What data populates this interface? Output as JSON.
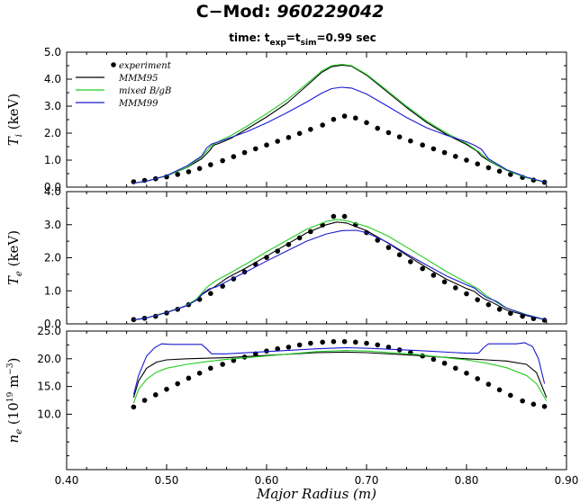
{
  "header": {
    "title_prefix": "C−Mod: ",
    "title_shot": "960229042",
    "subtitle_prefix": "time: t",
    "subtitle_sub1": "exp",
    "subtitle_mid": "=t",
    "subtitle_sub2": "sim",
    "subtitle_suffix": "=0.99 sec"
  },
  "colors": {
    "experiment": "#000000",
    "MMM95": "#000000",
    "mixed_BgB": "#22cc22",
    "MMM99": "#1a1acc"
  },
  "legend": {
    "placement": "top-left",
    "entries": [
      "experiment",
      "MMM95",
      "mixed B/gB",
      "MMM99"
    ]
  },
  "chart_data": [
    {
      "type": "line",
      "panel": "Ti",
      "ylabel_main": "T",
      "ylabel_sub": "i",
      "ylabel_unit": " (keV)",
      "xlim": [
        0.4,
        0.9
      ],
      "ylim": [
        0.0,
        5.0
      ],
      "yticks": [
        "0.0",
        "1.0",
        "2.0",
        "3.0",
        "4.0",
        "5.0"
      ],
      "grid": false,
      "series": [
        {
          "name": "experiment",
          "style": "points",
          "x": [
            0.467,
            0.478,
            0.489,
            0.5,
            0.511,
            0.522,
            0.533,
            0.544,
            0.556,
            0.567,
            0.578,
            0.589,
            0.6,
            0.611,
            0.622,
            0.633,
            0.644,
            0.656,
            0.667,
            0.678,
            0.689,
            0.7,
            0.711,
            0.722,
            0.733,
            0.744,
            0.756,
            0.767,
            0.778,
            0.789,
            0.8,
            0.811,
            0.822,
            0.833,
            0.844,
            0.856,
            0.867,
            0.878
          ],
          "y": [
            0.2,
            0.25,
            0.31,
            0.38,
            0.47,
            0.57,
            0.69,
            0.83,
            0.98,
            1.13,
            1.28,
            1.42,
            1.56,
            1.7,
            1.84,
            1.99,
            2.14,
            2.3,
            2.51,
            2.63,
            2.56,
            2.39,
            2.18,
            2.02,
            1.86,
            1.71,
            1.56,
            1.42,
            1.28,
            1.14,
            1.0,
            0.86,
            0.72,
            0.59,
            0.47,
            0.36,
            0.26,
            0.18
          ]
        },
        {
          "name": "MMM95",
          "style": "line",
          "x": [
            0.467,
            0.48,
            0.5,
            0.52,
            0.535,
            0.543,
            0.547,
            0.555,
            0.565,
            0.58,
            0.6,
            0.62,
            0.64,
            0.655,
            0.665,
            0.675,
            0.685,
            0.7,
            0.72,
            0.74,
            0.76,
            0.78,
            0.8,
            0.81,
            0.815,
            0.822,
            0.84,
            0.86,
            0.88
          ],
          "y": [
            0.15,
            0.22,
            0.42,
            0.72,
            1.05,
            1.35,
            1.55,
            1.66,
            1.82,
            2.15,
            2.6,
            3.1,
            3.75,
            4.25,
            4.46,
            4.52,
            4.48,
            4.15,
            3.55,
            2.95,
            2.4,
            1.95,
            1.58,
            1.35,
            1.15,
            0.98,
            0.62,
            0.35,
            0.17
          ]
        },
        {
          "name": "mixed B/gB",
          "style": "line",
          "x": [
            0.467,
            0.48,
            0.5,
            0.52,
            0.535,
            0.545,
            0.555,
            0.565,
            0.58,
            0.6,
            0.62,
            0.64,
            0.655,
            0.665,
            0.675,
            0.685,
            0.7,
            0.72,
            0.74,
            0.76,
            0.78,
            0.8,
            0.812,
            0.822,
            0.84,
            0.86,
            0.88
          ],
          "y": [
            0.15,
            0.22,
            0.42,
            0.73,
            1.12,
            1.55,
            1.75,
            1.92,
            2.25,
            2.72,
            3.22,
            3.82,
            4.3,
            4.5,
            4.55,
            4.5,
            4.18,
            3.6,
            3.0,
            2.45,
            2.0,
            1.62,
            1.32,
            1.0,
            0.62,
            0.35,
            0.17
          ]
        },
        {
          "name": "MMM99",
          "style": "line",
          "x": [
            0.467,
            0.48,
            0.5,
            0.52,
            0.535,
            0.54,
            0.545,
            0.552,
            0.56,
            0.58,
            0.6,
            0.62,
            0.64,
            0.655,
            0.665,
            0.675,
            0.685,
            0.7,
            0.72,
            0.74,
            0.76,
            0.78,
            0.8,
            0.808,
            0.815,
            0.822,
            0.84,
            0.86,
            0.88
          ],
          "y": [
            0.15,
            0.22,
            0.43,
            0.78,
            1.15,
            1.45,
            1.6,
            1.68,
            1.78,
            2.05,
            2.38,
            2.75,
            3.15,
            3.48,
            3.65,
            3.7,
            3.67,
            3.45,
            3.02,
            2.58,
            2.2,
            1.92,
            1.68,
            1.55,
            1.4,
            1.05,
            0.65,
            0.37,
            0.17
          ]
        }
      ]
    },
    {
      "type": "line",
      "panel": "Te",
      "ylabel_main": "T",
      "ylabel_sub": "e",
      "ylabel_unit": " (keV)",
      "xlim": [
        0.4,
        0.9
      ],
      "ylim": [
        0.0,
        4.0
      ],
      "yticks": [
        "0.0",
        "1.0",
        "2.0",
        "3.0",
        "4.0"
      ],
      "grid": false,
      "series": [
        {
          "name": "experiment",
          "style": "points",
          "x": [
            0.467,
            0.478,
            0.489,
            0.5,
            0.511,
            0.522,
            0.533,
            0.544,
            0.556,
            0.567,
            0.578,
            0.589,
            0.6,
            0.611,
            0.622,
            0.633,
            0.644,
            0.656,
            0.667,
            0.678,
            0.689,
            0.7,
            0.711,
            0.722,
            0.733,
            0.744,
            0.756,
            0.767,
            0.778,
            0.789,
            0.8,
            0.811,
            0.822,
            0.833,
            0.844,
            0.856,
            0.867,
            0.878
          ],
          "y": [
            0.13,
            0.17,
            0.23,
            0.33,
            0.44,
            0.58,
            0.74,
            0.92,
            1.14,
            1.36,
            1.57,
            1.8,
            2.01,
            2.2,
            2.4,
            2.6,
            2.79,
            2.99,
            3.25,
            3.25,
            3.0,
            2.76,
            2.53,
            2.31,
            2.09,
            1.88,
            1.67,
            1.47,
            1.27,
            1.09,
            0.91,
            0.73,
            0.58,
            0.44,
            0.32,
            0.23,
            0.16,
            0.11
          ]
        },
        {
          "name": "MMM95",
          "style": "line",
          "x": [
            0.467,
            0.48,
            0.5,
            0.52,
            0.53,
            0.536,
            0.542,
            0.548,
            0.56,
            0.58,
            0.6,
            0.62,
            0.64,
            0.66,
            0.67,
            0.68,
            0.7,
            0.72,
            0.74,
            0.76,
            0.78,
            0.8,
            0.808,
            0.812,
            0.818,
            0.825,
            0.84,
            0.86,
            0.88
          ],
          "y": [
            0.12,
            0.18,
            0.35,
            0.55,
            0.72,
            0.9,
            1.02,
            1.12,
            1.38,
            1.7,
            2.05,
            2.4,
            2.75,
            3.0,
            3.08,
            3.05,
            2.82,
            2.47,
            2.08,
            1.7,
            1.35,
            1.07,
            0.98,
            0.88,
            0.75,
            0.66,
            0.42,
            0.25,
            0.12
          ]
        },
        {
          "name": "mixed B/gB",
          "style": "line",
          "x": [
            0.467,
            0.48,
            0.5,
            0.52,
            0.53,
            0.54,
            0.55,
            0.56,
            0.58,
            0.6,
            0.62,
            0.64,
            0.66,
            0.67,
            0.68,
            0.7,
            0.72,
            0.74,
            0.76,
            0.78,
            0.8,
            0.812,
            0.82,
            0.83,
            0.84,
            0.86,
            0.88
          ],
          "y": [
            0.12,
            0.18,
            0.34,
            0.56,
            0.75,
            1.1,
            1.32,
            1.48,
            1.82,
            2.18,
            2.52,
            2.86,
            3.1,
            3.16,
            3.12,
            2.95,
            2.68,
            2.32,
            1.95,
            1.58,
            1.25,
            1.05,
            0.85,
            0.65,
            0.48,
            0.28,
            0.12
          ]
        },
        {
          "name": "MMM99",
          "style": "line",
          "x": [
            0.467,
            0.48,
            0.5,
            0.52,
            0.53,
            0.536,
            0.542,
            0.55,
            0.56,
            0.58,
            0.6,
            0.62,
            0.64,
            0.66,
            0.675,
            0.69,
            0.7,
            0.72,
            0.74,
            0.76,
            0.78,
            0.8,
            0.808,
            0.813,
            0.82,
            0.83,
            0.84,
            0.86,
            0.88
          ],
          "y": [
            0.12,
            0.18,
            0.34,
            0.55,
            0.72,
            0.92,
            1.05,
            1.12,
            1.28,
            1.58,
            1.9,
            2.2,
            2.5,
            2.72,
            2.82,
            2.83,
            2.76,
            2.48,
            2.12,
            1.78,
            1.45,
            1.18,
            1.08,
            0.95,
            0.8,
            0.68,
            0.48,
            0.27,
            0.12
          ]
        }
      ]
    },
    {
      "type": "line",
      "panel": "ne",
      "ylabel_main": "n",
      "ylabel_sub": "e",
      "ylabel_unit": " (10",
      "ylabel_sup1": "19",
      "ylabel_unit2": " m",
      "ylabel_sup2": "−3",
      "ylabel_close": ")",
      "xlabel": "Major Radius (m)",
      "xlim": [
        0.4,
        0.9
      ],
      "ylim": [
        0.0,
        25.0
      ],
      "xticks": [
        "0.40",
        "0.50",
        "0.60",
        "0.70",
        "0.80",
        "0.90"
      ],
      "yticks": [
        "10.0",
        "15.0",
        "20.0",
        "25.0"
      ],
      "ytick_values": [
        10,
        15,
        20,
        25
      ],
      "grid": false,
      "series": [
        {
          "name": "experiment",
          "style": "points",
          "x": [
            0.467,
            0.478,
            0.489,
            0.5,
            0.511,
            0.522,
            0.533,
            0.544,
            0.556,
            0.567,
            0.578,
            0.589,
            0.6,
            0.611,
            0.622,
            0.633,
            0.644,
            0.656,
            0.667,
            0.678,
            0.689,
            0.7,
            0.711,
            0.722,
            0.733,
            0.744,
            0.756,
            0.767,
            0.778,
            0.789,
            0.8,
            0.811,
            0.822,
            0.833,
            0.844,
            0.856,
            0.867,
            0.878
          ],
          "y": [
            11.3,
            12.5,
            13.5,
            14.5,
            15.5,
            16.5,
            17.4,
            18.3,
            19.0,
            19.7,
            20.3,
            20.9,
            21.4,
            21.8,
            22.1,
            22.5,
            22.8,
            23.0,
            23.1,
            23.1,
            23.0,
            22.8,
            22.5,
            22.1,
            21.6,
            21.1,
            20.5,
            19.9,
            19.2,
            18.3,
            17.4,
            16.4,
            15.4,
            14.4,
            13.4,
            12.4,
            11.8,
            11.4
          ]
        },
        {
          "name": "MMM95",
          "style": "line",
          "x": [
            0.467,
            0.472,
            0.48,
            0.49,
            0.5,
            0.52,
            0.54,
            0.56,
            0.6,
            0.65,
            0.68,
            0.7,
            0.75,
            0.8,
            0.82,
            0.84,
            0.86,
            0.87,
            0.88
          ],
          "y": [
            13.0,
            16.0,
            18.3,
            19.4,
            19.8,
            20.0,
            20.1,
            20.2,
            20.6,
            21.1,
            21.2,
            21.1,
            20.6,
            20.0,
            19.8,
            19.6,
            19.0,
            17.5,
            13.0
          ]
        },
        {
          "name": "mixed B/gB",
          "style": "line",
          "x": [
            0.467,
            0.472,
            0.48,
            0.49,
            0.5,
            0.52,
            0.54,
            0.56,
            0.6,
            0.65,
            0.68,
            0.7,
            0.75,
            0.8,
            0.82,
            0.84,
            0.86,
            0.87,
            0.88
          ],
          "y": [
            12.0,
            14.5,
            16.3,
            17.6,
            18.3,
            19.0,
            19.5,
            19.9,
            20.5,
            21.3,
            21.5,
            21.4,
            20.8,
            19.8,
            19.2,
            18.4,
            17.0,
            15.5,
            12.4
          ]
        },
        {
          "name": "MMM99",
          "style": "line",
          "x": [
            0.467,
            0.472,
            0.48,
            0.488,
            0.495,
            0.505,
            0.52,
            0.535,
            0.54,
            0.545,
            0.56,
            0.6,
            0.65,
            0.68,
            0.7,
            0.75,
            0.8,
            0.812,
            0.817,
            0.822,
            0.835,
            0.85,
            0.858,
            0.866,
            0.872,
            0.878
          ],
          "y": [
            13.5,
            17.0,
            20.5,
            22.0,
            22.7,
            22.6,
            22.6,
            22.6,
            21.8,
            20.9,
            20.9,
            21.3,
            21.8,
            22.0,
            21.9,
            21.5,
            21.0,
            21.0,
            22.0,
            22.7,
            22.7,
            22.7,
            22.9,
            22.2,
            20.0,
            15.5
          ]
        }
      ]
    }
  ]
}
